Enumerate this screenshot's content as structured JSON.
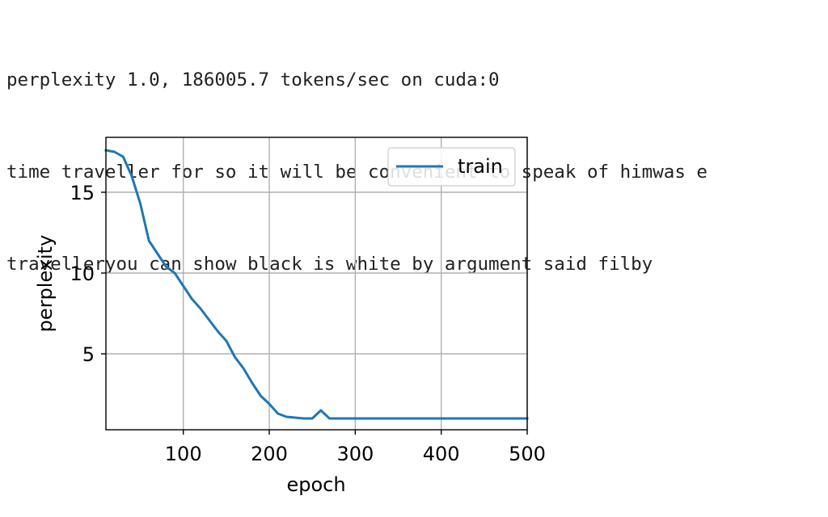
{
  "console": {
    "lines": [
      "perplexity 1.0, 186005.7 tokens/sec on cuda:0",
      "time traveller for so it will be convenient to speak of himwas e",
      "travelleryou can show black is white by argument said filby"
    ]
  },
  "chart_data": {
    "type": "line",
    "xlabel": "epoch",
    "ylabel": "perplexity",
    "xlim": [
      10,
      500
    ],
    "ylim": [
      0.3,
      18.4
    ],
    "xticks": [
      100,
      200,
      300,
      400,
      500
    ],
    "yticks": [
      5,
      10,
      15
    ],
    "grid": true,
    "legend": {
      "position": "top-right"
    },
    "series": [
      {
        "name": "train",
        "color": "#1f77b4",
        "x": [
          10,
          20,
          30,
          40,
          50,
          60,
          70,
          80,
          90,
          100,
          110,
          120,
          130,
          140,
          150,
          160,
          170,
          180,
          190,
          200,
          210,
          220,
          230,
          240,
          250,
          260,
          270,
          280,
          290,
          300,
          310,
          320,
          330,
          340,
          350,
          360,
          370,
          380,
          390,
          400,
          410,
          420,
          430,
          440,
          450,
          460,
          470,
          480,
          490,
          500
        ],
        "y": [
          17.6,
          17.5,
          17.2,
          16.0,
          14.3,
          12.0,
          11.2,
          10.4,
          10.0,
          9.2,
          8.4,
          7.8,
          7.1,
          6.4,
          5.8,
          4.8,
          4.1,
          3.2,
          2.4,
          1.9,
          1.3,
          1.1,
          1.05,
          1.0,
          1.0,
          1.5,
          1.0,
          1.0,
          1.0,
          1.0,
          1.0,
          1.0,
          1.0,
          1.0,
          1.0,
          1.0,
          1.0,
          1.0,
          1.0,
          1.0,
          1.0,
          1.0,
          1.0,
          1.0,
          1.0,
          1.0,
          1.0,
          1.0,
          1.0,
          1.0
        ]
      }
    ]
  }
}
